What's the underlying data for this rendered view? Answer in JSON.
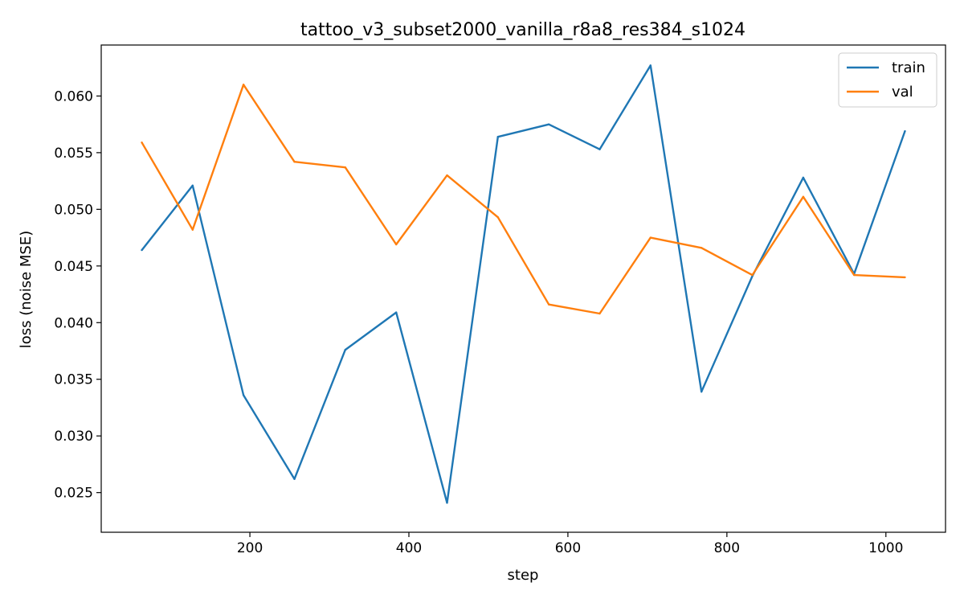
{
  "chart_data": {
    "type": "line",
    "title": "tattoo_v3_subset2000_vanilla_r8a8_res384_s1024",
    "xlabel": "step",
    "ylabel": "loss (noise MSE)",
    "xlim": [
      13,
      1075
    ],
    "ylim": [
      0.0215,
      0.0645
    ],
    "xticks": [
      200,
      400,
      600,
      800,
      1000
    ],
    "yticks": [
      0.025,
      0.03,
      0.035,
      0.04,
      0.045,
      0.05,
      0.055,
      0.06
    ],
    "xtick_labels": [
      "200",
      "400",
      "600",
      "800",
      "1000"
    ],
    "ytick_labels": [
      "0.025",
      "0.030",
      "0.035",
      "0.040",
      "0.045",
      "0.050",
      "0.055",
      "0.060"
    ],
    "grid": false,
    "legend_position": "top-right",
    "x": [
      64,
      128,
      192,
      256,
      320,
      384,
      448,
      512,
      576,
      640,
      704,
      768,
      832,
      896,
      960,
      1024
    ],
    "series": [
      {
        "name": "train",
        "color": "#1f77b4",
        "values": [
          0.0464,
          0.0521,
          0.0336,
          0.0262,
          0.0376,
          0.0409,
          0.0241,
          0.0564,
          0.0575,
          0.0553,
          0.0627,
          0.0339,
          0.0441,
          0.0528,
          0.0443,
          0.0569
        ]
      },
      {
        "name": "val",
        "color": "#ff7f0e",
        "values": [
          0.0559,
          0.0482,
          0.061,
          0.0542,
          0.0537,
          0.0469,
          0.053,
          0.0493,
          0.0416,
          0.0408,
          0.0475,
          0.0466,
          0.0442,
          0.0511,
          0.0442,
          0.044
        ]
      }
    ]
  }
}
